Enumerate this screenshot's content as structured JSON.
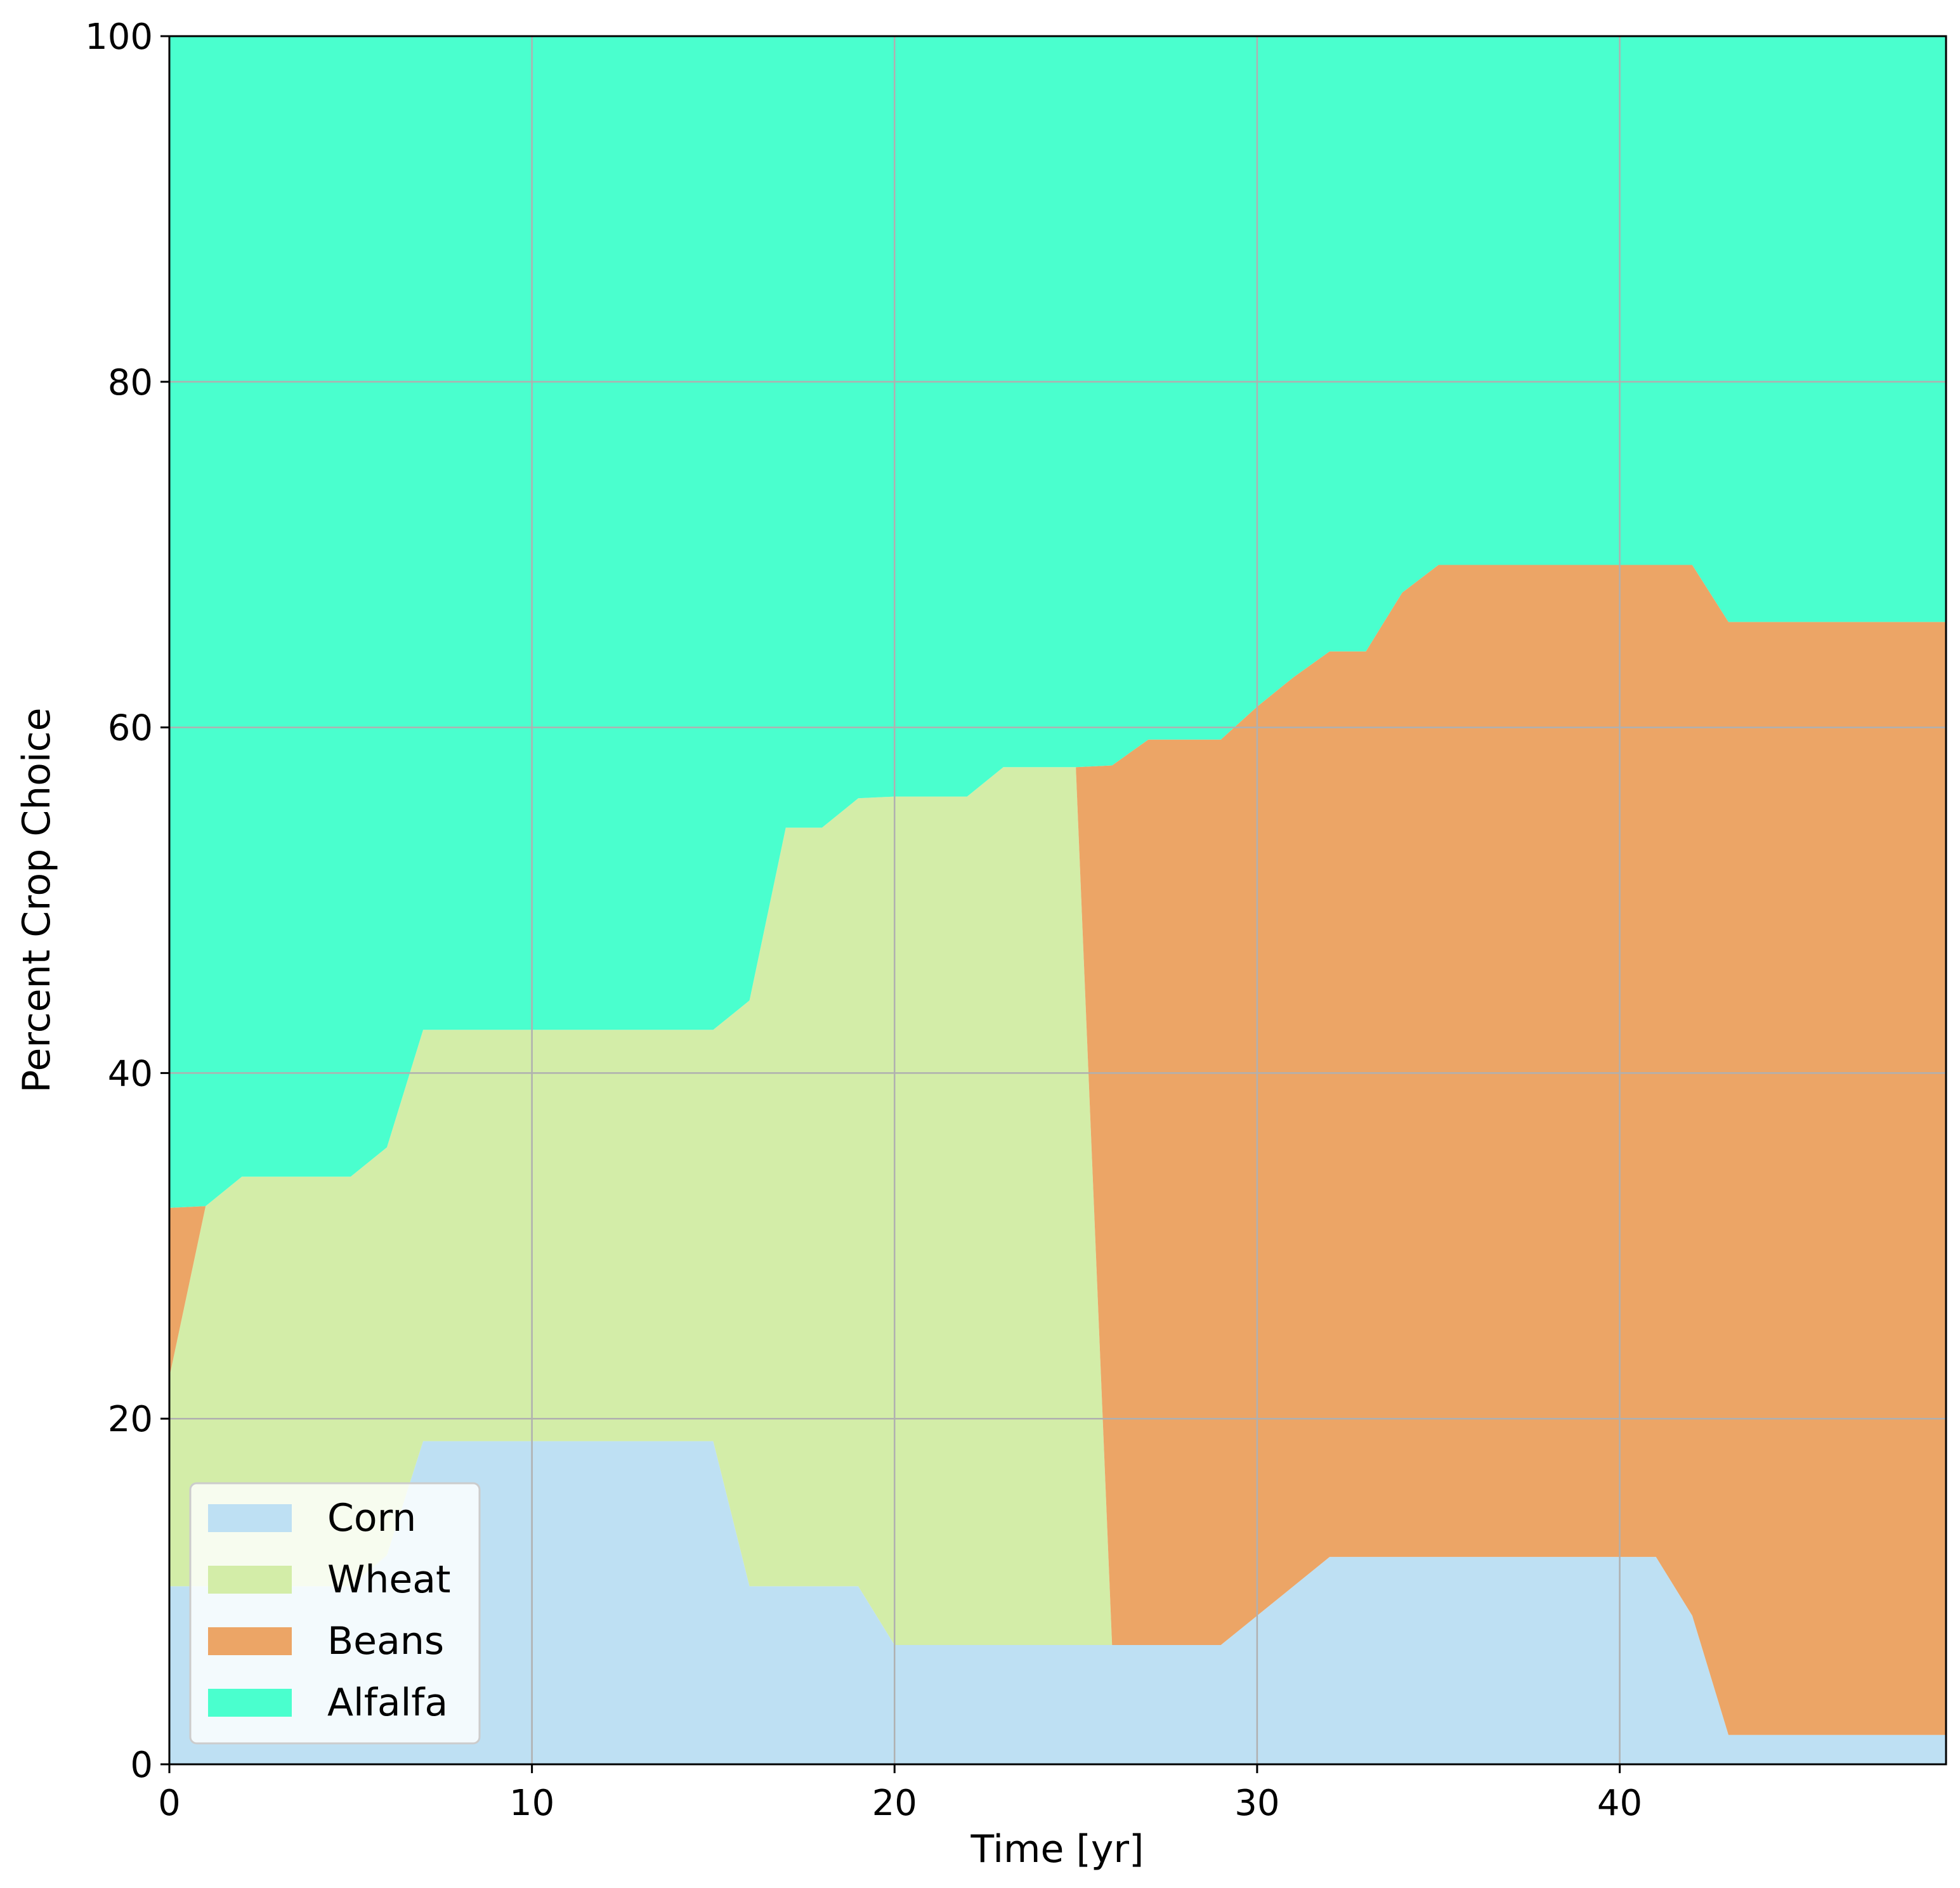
{
  "chart_data": {
    "type": "area",
    "stacked": true,
    "xlabel": "Time [yr]",
    "ylabel": "Percent Crop Choice",
    "xlim": [
      0,
      49
    ],
    "ylim": [
      0,
      100
    ],
    "xticks": [
      0,
      10,
      20,
      30,
      40
    ],
    "yticks": [
      0,
      20,
      40,
      60,
      80,
      100
    ],
    "grid": true,
    "legend_position": "lower-left",
    "x": [
      0,
      1,
      2,
      3,
      4,
      5,
      6,
      7,
      8,
      9,
      10,
      11,
      12,
      13,
      14,
      15,
      16,
      17,
      18,
      19,
      20,
      21,
      22,
      23,
      24,
      25,
      26,
      27,
      28,
      29,
      30,
      31,
      32,
      33,
      34,
      35,
      36,
      37,
      38,
      39,
      40,
      41,
      42,
      43,
      44,
      45,
      46,
      47,
      48,
      49
    ],
    "series": [
      {
        "name": "Corn",
        "color": "#bee0f3",
        "values": [
          10.3,
          10.3,
          10.3,
          10.3,
          10.3,
          10.3,
          12.1,
          18.7,
          18.7,
          18.7,
          18.7,
          18.7,
          18.7,
          18.7,
          18.7,
          18.7,
          10.3,
          10.3,
          10.3,
          10.3,
          6.9,
          6.9,
          6.9,
          6.9,
          6.9,
          6.9,
          6.9,
          6.9,
          6.9,
          6.9,
          8.6,
          10.3,
          12.0,
          12.0,
          12.0,
          12.0,
          12.0,
          12.0,
          12.0,
          12.0,
          12.0,
          12.0,
          8.6,
          1.7,
          1.7,
          1.7,
          1.7,
          1.7,
          1.7,
          1.7
        ]
      },
      {
        "name": "Wheat",
        "color": "#d3eda8",
        "values": [
          12.1,
          22.0,
          23.7,
          23.7,
          23.7,
          23.7,
          23.6,
          23.8,
          23.8,
          23.8,
          23.8,
          23.8,
          23.8,
          23.8,
          23.8,
          23.8,
          33.9,
          43.9,
          43.9,
          45.6,
          49.1,
          49.1,
          49.1,
          50.8,
          50.8,
          50.8,
          0,
          0,
          0,
          0,
          0,
          0,
          0,
          0,
          0,
          0,
          0,
          0,
          0,
          0,
          0,
          0,
          0,
          0,
          0,
          0,
          0,
          0,
          0,
          0
        ]
      },
      {
        "name": "Beans",
        "color": "#eca566",
        "values": [
          9.8,
          0,
          0,
          0,
          0,
          0,
          0,
          0,
          0,
          0,
          0,
          0,
          0,
          0,
          0,
          0,
          0,
          0,
          0,
          0,
          0,
          0,
          0,
          0,
          0,
          0,
          50.9,
          52.4,
          52.4,
          52.4,
          52.6,
          52.6,
          52.4,
          52.4,
          55.8,
          57.4,
          57.4,
          57.4,
          57.4,
          57.4,
          57.4,
          57.4,
          60.8,
          64.4,
          64.4,
          64.4,
          64.4,
          64.4,
          64.4,
          64.4
        ]
      },
      {
        "name": "Alfalfa",
        "color": "#4affce",
        "values": [
          67.8,
          67.7,
          66.0,
          66.0,
          66.0,
          66.0,
          64.3,
          57.5,
          57.5,
          57.5,
          57.5,
          57.5,
          57.5,
          57.5,
          57.5,
          57.5,
          55.8,
          45.8,
          45.8,
          44.1,
          44.0,
          44.0,
          44.0,
          42.3,
          42.3,
          42.3,
          42.2,
          40.7,
          40.7,
          40.7,
          38.8,
          37.1,
          35.6,
          35.6,
          32.2,
          30.6,
          30.6,
          30.6,
          30.6,
          30.6,
          30.6,
          30.6,
          30.6,
          33.9,
          33.9,
          33.9,
          33.9,
          33.9,
          33.9,
          33.9
        ]
      }
    ]
  }
}
